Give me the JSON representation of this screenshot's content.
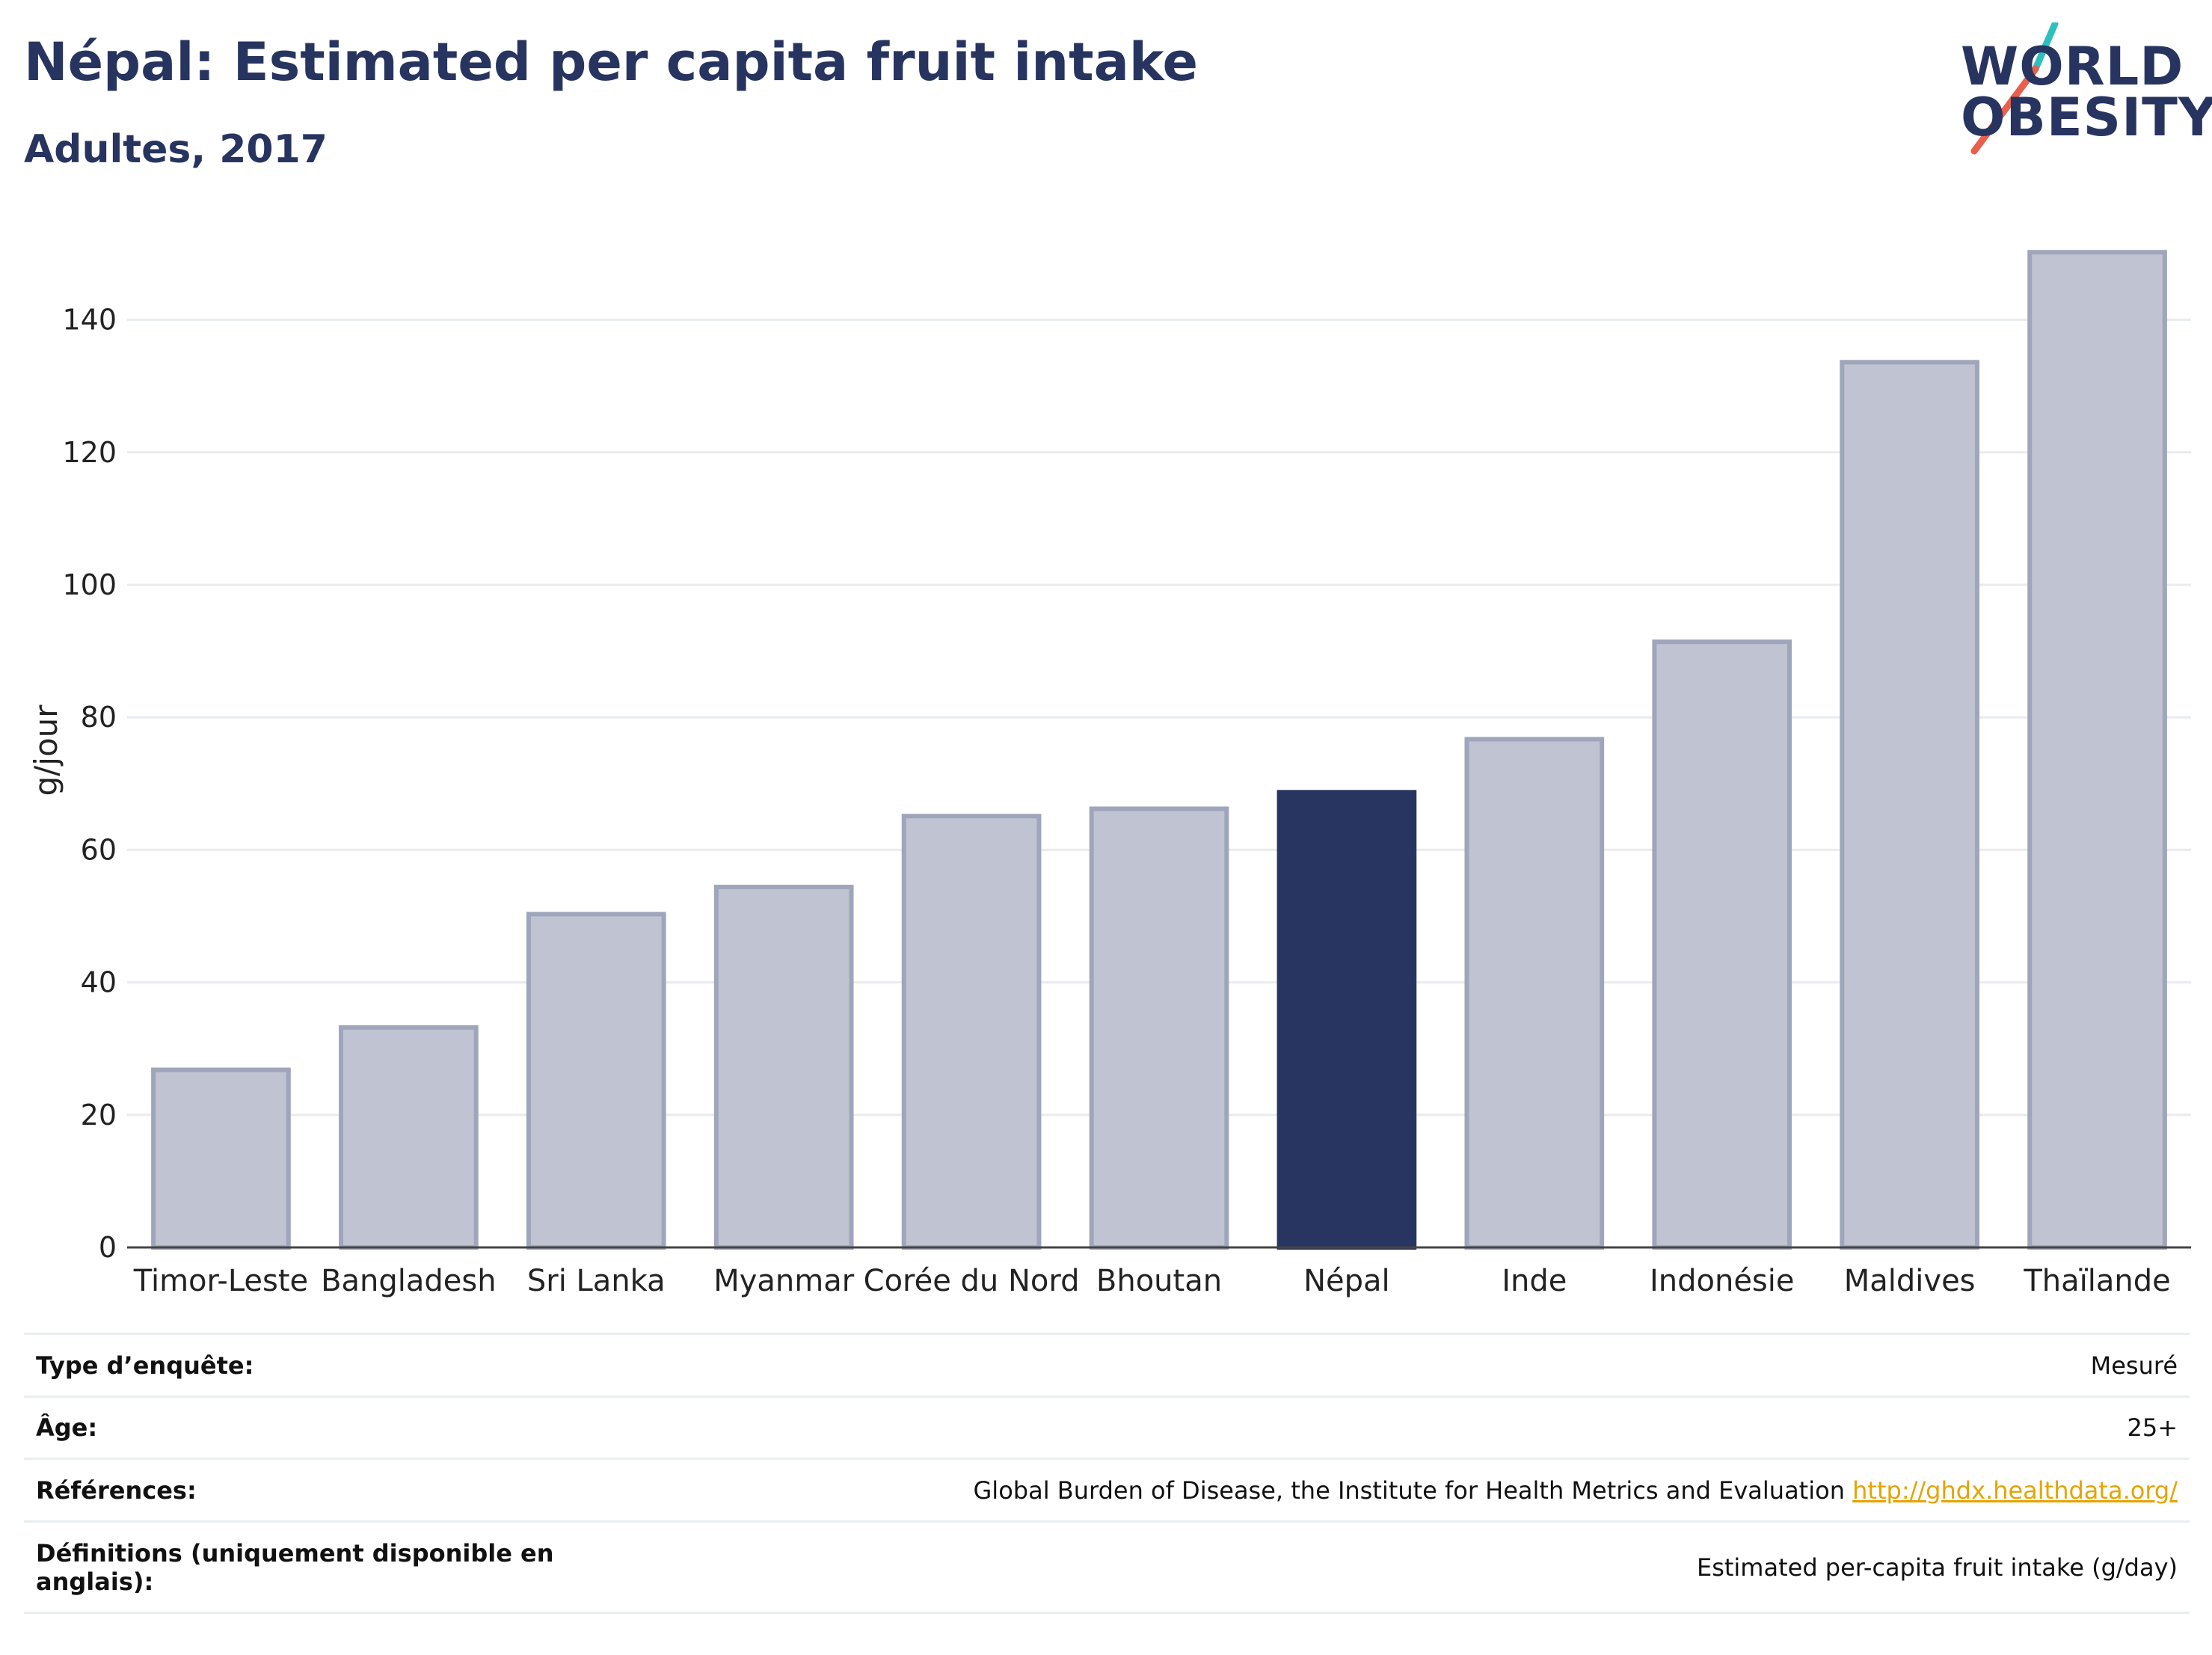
{
  "header": {
    "title": "Népal: Estimated per capita fruit intake",
    "subtitle": "Adultes, 2017"
  },
  "logo": {
    "line1": "WORLD",
    "line2": "OBESITY",
    "slash_colors": [
      "#2fbfbf",
      "#e8604c"
    ]
  },
  "chart_data": {
    "type": "bar",
    "categories": [
      "Timor-Leste",
      "Bangladesh",
      "Sri Lanka",
      "Myanmar",
      "Corée du Nord",
      "Bhoutan",
      "Népal",
      "Inde",
      "Indonésie",
      "Maldives",
      "Thaïlande"
    ],
    "values": [
      26.8,
      33.2,
      50.3,
      54.4,
      65.1,
      66.2,
      68.7,
      76.7,
      91.4,
      133.6,
      150.2
    ],
    "highlight": "Népal",
    "ylabel": "g/jour",
    "yticks": [
      0,
      20,
      40,
      60,
      80,
      100,
      120,
      140
    ],
    "ylim": [
      0,
      150
    ],
    "grid": true,
    "legend": "none",
    "colors": {
      "bar_fill": "#c0c3d1",
      "bar_stroke": "#9fa5bb",
      "highlight": "#283560",
      "grid": "#e9ecef",
      "axis": "#444444"
    }
  },
  "info_table": [
    {
      "label": "Type d’enquête:",
      "value": "Mesuré"
    },
    {
      "label": "Âge:",
      "value": "25+"
    },
    {
      "label": "Références:",
      "value": "Global Burden of Disease, the Institute for Health Metrics and Evaluation",
      "link": "http://ghdx.healthdata.org/"
    },
    {
      "label": "Définitions (uniquement disponible en anglais):",
      "value": "Estimated per-capita fruit intake (g/day)"
    }
  ]
}
